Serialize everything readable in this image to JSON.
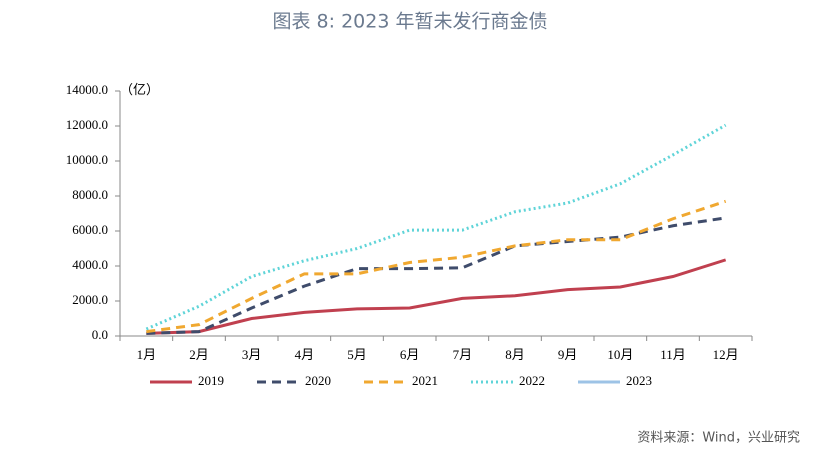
{
  "chart_data": {
    "type": "line",
    "title": "图表 8:   2023 年暂未发行商金债",
    "unit_label": "（亿）",
    "source": "资料来源：Wind，兴业研究",
    "categories": [
      "1月",
      "2月",
      "3月",
      "4月",
      "5月",
      "6月",
      "7月",
      "8月",
      "9月",
      "10月",
      "11月",
      "12月"
    ],
    "series": [
      {
        "name": "2019",
        "color": "#c0404f",
        "dash": "solid",
        "values": [
          150,
          250,
          1000,
          1350,
          1550,
          1600,
          2150,
          2300,
          2650,
          2800,
          3400,
          4350
        ]
      },
      {
        "name": "2020",
        "color": "#3f4c6b",
        "dash": "dashed",
        "values": [
          150,
          250,
          1600,
          2850,
          3850,
          3850,
          3900,
          5150,
          5400,
          5650,
          6300,
          6750
        ]
      },
      {
        "name": "2021",
        "color": "#f0a830",
        "dash": "dashed",
        "values": [
          250,
          650,
          2150,
          3550,
          3550,
          4200,
          4500,
          5150,
          5500,
          5500,
          6700,
          7700
        ]
      },
      {
        "name": "2022",
        "color": "#5fd4d8",
        "dash": "dotted",
        "values": [
          400,
          1700,
          3400,
          4300,
          5000,
          6050,
          6050,
          7100,
          7600,
          8700,
          10350,
          12050
        ]
      },
      {
        "name": "2023",
        "color": "#9dc3e6",
        "dash": "solid",
        "values": [
          null,
          null,
          null,
          null,
          null,
          null,
          null,
          null,
          null,
          null,
          null,
          null
        ]
      }
    ],
    "ylim": [
      0,
      14000
    ],
    "yticks": [
      {
        "value": 0,
        "label": "0.0"
      },
      {
        "value": 2000,
        "label": "2000.0"
      },
      {
        "value": 4000,
        "label": "4000.0"
      },
      {
        "value": 6000,
        "label": "6000.0"
      },
      {
        "value": 8000,
        "label": "8000.0"
      },
      {
        "value": 10000,
        "label": "10000.0"
      },
      {
        "value": 12000,
        "label": "12000.0"
      },
      {
        "value": 14000,
        "label": "14000.0"
      }
    ],
    "grid": false
  }
}
